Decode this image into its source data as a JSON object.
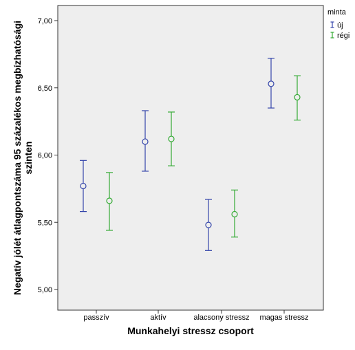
{
  "chart_data": {
    "type": "errorbar",
    "title": "",
    "xlabel": "Munkahelyi stressz csoport",
    "ylabel": "Negatív jólét átlagpontszáma 95 százalékos megbízhatósági szinten",
    "ylabel_lines": [
      "Negatív jólét átlagpontszáma 95 százalékos megbízhatósági",
      "szinten"
    ],
    "ylim": [
      5.0,
      7.0
    ],
    "yticks": [
      {
        "value": 5.0,
        "label": "5,00"
      },
      {
        "value": 5.5,
        "label": "5,50"
      },
      {
        "value": 6.0,
        "label": "6,00"
      },
      {
        "value": 6.5,
        "label": "6,50"
      },
      {
        "value": 7.0,
        "label": "7,00"
      }
    ],
    "categories": [
      "passzív",
      "aktív",
      "alacsony stressz",
      "magas stressz"
    ],
    "grid": false,
    "legend": {
      "title": "minta",
      "placement": "top-right"
    },
    "series": [
      {
        "name": "új",
        "color": "#3344aa",
        "mean": [
          5.77,
          6.1,
          5.48,
          6.53
        ],
        "lower": [
          5.58,
          5.88,
          5.29,
          6.35
        ],
        "upper": [
          5.96,
          6.33,
          5.67,
          6.72
        ]
      },
      {
        "name": "régi",
        "color": "#33aa33",
        "mean": [
          5.66,
          6.12,
          5.56,
          6.43
        ],
        "lower": [
          5.44,
          5.92,
          5.39,
          6.26
        ],
        "upper": [
          5.87,
          6.32,
          5.74,
          6.59
        ]
      }
    ],
    "colors": {
      "plot_background": "#eeeeee",
      "axis": "#333333"
    }
  }
}
